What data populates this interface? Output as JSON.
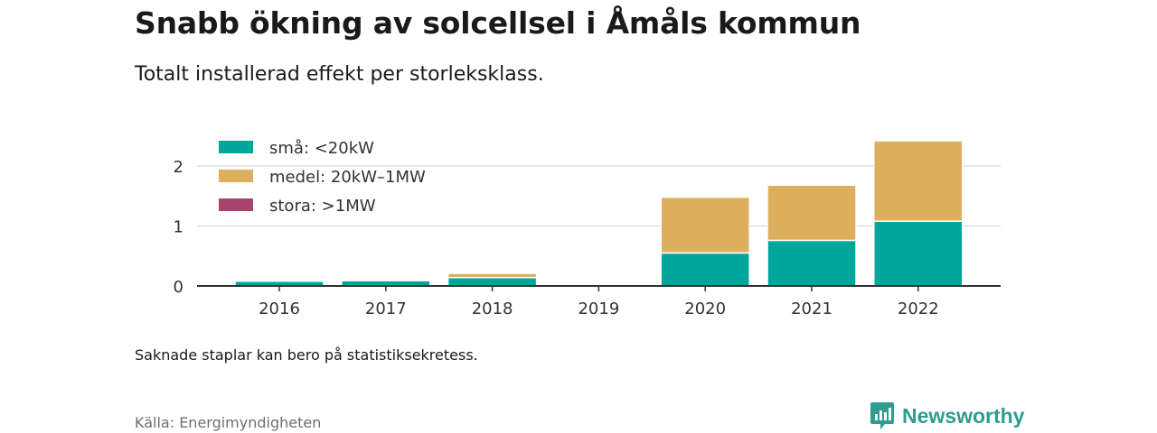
{
  "header": {
    "title": "Snabb ökning av solcellsel i Åmåls kommun",
    "subtitle": "Totalt installerad effekt per storleksklass."
  },
  "footer": {
    "note": "Saknade staplar kan bero på statistiksekretess.",
    "source": "Källa: Energimyndigheten",
    "brand": "Newsworthy",
    "brand_icon": "newsworthy-logo-icon",
    "brand_color": "#2e9c8f"
  },
  "chart_data": {
    "type": "bar",
    "stacked": true,
    "categories": [
      "2016",
      "2017",
      "2018",
      "2019",
      "2020",
      "2021",
      "2022"
    ],
    "series": [
      {
        "name": "små: <20kW",
        "color": "#00a69c",
        "values": [
          0.08,
          0.09,
          0.14,
          0,
          0.55,
          0.76,
          1.08
        ]
      },
      {
        "name": "medel: 20kW–1MW",
        "color": "#dcaf5c",
        "values": [
          0.02,
          0.01,
          0.07,
          0,
          0.93,
          0.92,
          1.34
        ]
      },
      {
        "name": "stora: >1MW",
        "color": "#a8446b",
        "values": [
          0,
          0,
          0,
          0,
          0,
          0,
          0
        ]
      }
    ],
    "yticks": [
      0,
      1,
      2
    ],
    "ylim": [
      0,
      2.45
    ],
    "grid": true,
    "legend": "top-left"
  }
}
